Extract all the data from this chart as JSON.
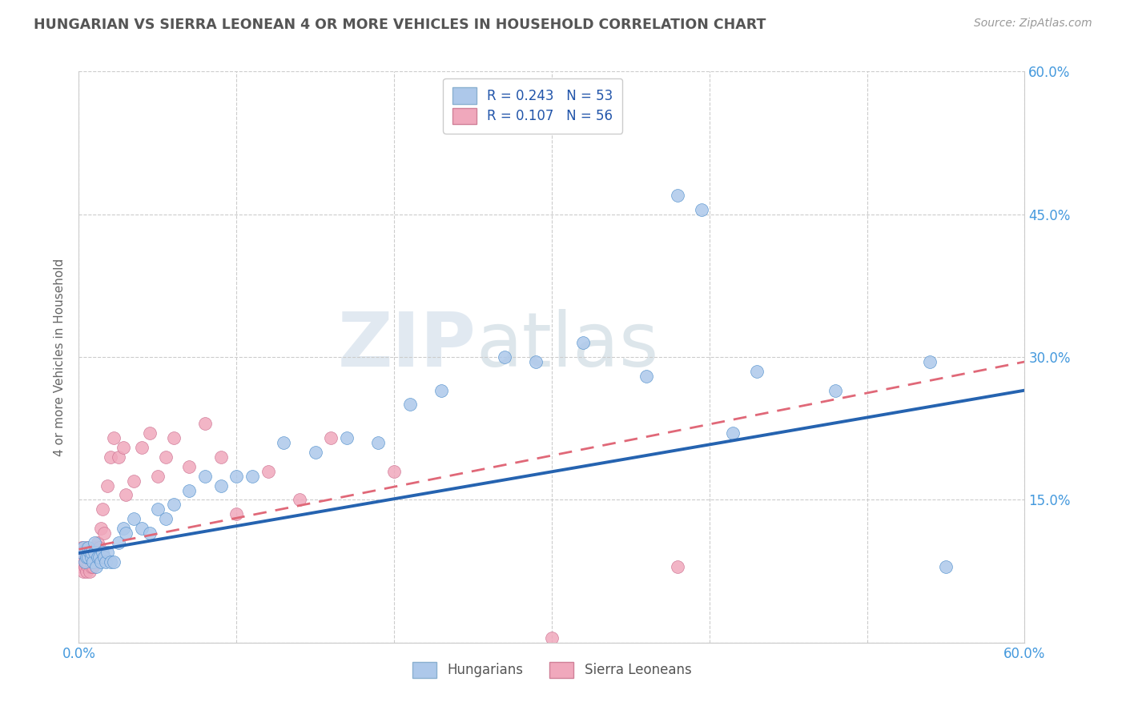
{
  "title": "HUNGARIAN VS SIERRA LEONEAN 4 OR MORE VEHICLES IN HOUSEHOLD CORRELATION CHART",
  "source": "Source: ZipAtlas.com",
  "ylabel": "4 or more Vehicles in Household",
  "xlim": [
    0.0,
    0.6
  ],
  "ylim": [
    0.0,
    0.6
  ],
  "hungarian_R": 0.243,
  "hungarian_N": 53,
  "sierra_R": 0.107,
  "sierra_N": 56,
  "hungarian_color": "#adc8ea",
  "sierra_color": "#f0a8bc",
  "hungarian_line_color": "#2563b0",
  "sierra_line_color": "#e06878",
  "watermark_zip": "ZIP",
  "watermark_atlas": "atlas",
  "legend_labels": [
    "Hungarians",
    "Sierra Leoneans"
  ],
  "hungarian_x": [
    0.002,
    0.003,
    0.004,
    0.005,
    0.006,
    0.006,
    0.007,
    0.008,
    0.008,
    0.009,
    0.01,
    0.01,
    0.011,
    0.012,
    0.013,
    0.014,
    0.015,
    0.016,
    0.017,
    0.018,
    0.02,
    0.022,
    0.025,
    0.028,
    0.03,
    0.035,
    0.04,
    0.045,
    0.05,
    0.055,
    0.06,
    0.07,
    0.08,
    0.09,
    0.1,
    0.11,
    0.13,
    0.15,
    0.17,
    0.19,
    0.21,
    0.23,
    0.27,
    0.29,
    0.32,
    0.36,
    0.38,
    0.395,
    0.415,
    0.43,
    0.48,
    0.54,
    0.55
  ],
  "hungarian_y": [
    0.095,
    0.1,
    0.085,
    0.09,
    0.09,
    0.1,
    0.095,
    0.09,
    0.095,
    0.085,
    0.095,
    0.105,
    0.08,
    0.09,
    0.09,
    0.085,
    0.095,
    0.09,
    0.085,
    0.095,
    0.085,
    0.085,
    0.105,
    0.12,
    0.115,
    0.13,
    0.12,
    0.115,
    0.14,
    0.13,
    0.145,
    0.16,
    0.175,
    0.165,
    0.175,
    0.175,
    0.21,
    0.2,
    0.215,
    0.21,
    0.25,
    0.265,
    0.3,
    0.295,
    0.315,
    0.28,
    0.47,
    0.455,
    0.22,
    0.285,
    0.265,
    0.295,
    0.08
  ],
  "sierra_x": [
    0.001,
    0.001,
    0.001,
    0.002,
    0.002,
    0.002,
    0.003,
    0.003,
    0.003,
    0.003,
    0.004,
    0.004,
    0.004,
    0.005,
    0.005,
    0.005,
    0.005,
    0.006,
    0.006,
    0.006,
    0.007,
    0.007,
    0.008,
    0.008,
    0.009,
    0.009,
    0.01,
    0.01,
    0.011,
    0.012,
    0.013,
    0.014,
    0.015,
    0.016,
    0.018,
    0.02,
    0.022,
    0.025,
    0.028,
    0.03,
    0.035,
    0.04,
    0.045,
    0.05,
    0.055,
    0.06,
    0.07,
    0.08,
    0.09,
    0.1,
    0.12,
    0.14,
    0.16,
    0.2,
    0.3,
    0.38
  ],
  "sierra_y": [
    0.085,
    0.09,
    0.095,
    0.08,
    0.085,
    0.1,
    0.075,
    0.085,
    0.09,
    0.095,
    0.08,
    0.085,
    0.095,
    0.075,
    0.085,
    0.09,
    0.1,
    0.08,
    0.085,
    0.095,
    0.075,
    0.09,
    0.08,
    0.095,
    0.08,
    0.085,
    0.09,
    0.1,
    0.095,
    0.105,
    0.1,
    0.12,
    0.14,
    0.115,
    0.165,
    0.195,
    0.215,
    0.195,
    0.205,
    0.155,
    0.17,
    0.205,
    0.22,
    0.175,
    0.195,
    0.215,
    0.185,
    0.23,
    0.195,
    0.135,
    0.18,
    0.15,
    0.215,
    0.18,
    0.005,
    0.08
  ],
  "trend_h_x0": 0.0,
  "trend_h_y0": 0.094,
  "trend_h_x1": 0.6,
  "trend_h_y1": 0.265,
  "trend_s_x0": 0.0,
  "trend_s_y0": 0.098,
  "trend_s_x1": 0.6,
  "trend_s_y1": 0.295
}
